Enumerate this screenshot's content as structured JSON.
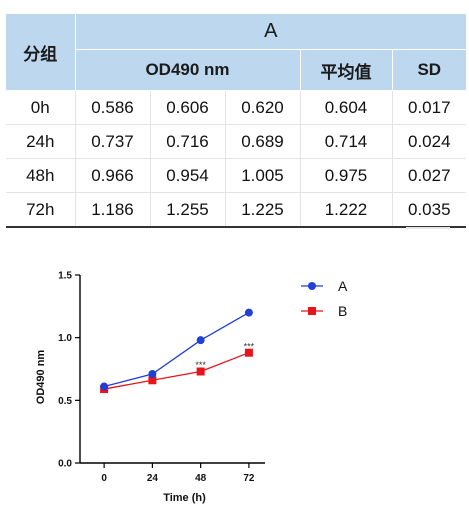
{
  "table": {
    "group_header": "分组",
    "top_header": "A",
    "sub_headers": [
      "OD490 nm",
      "平均值",
      "SD"
    ],
    "rows": [
      {
        "label": "0h",
        "values": [
          "0.586",
          "0.606",
          "0.620"
        ],
        "mean": "0.604",
        "sd": "0.017"
      },
      {
        "label": "24h",
        "values": [
          "0.737",
          "0.716",
          "0.689"
        ],
        "mean": "0.714",
        "sd": "0.024"
      },
      {
        "label": "48h",
        "values": [
          "0.966",
          "0.954",
          "1.005"
        ],
        "mean": "0.975",
        "sd": "0.027"
      },
      {
        "label": "72h",
        "values": [
          "1.186",
          "1.255",
          "1.225"
        ],
        "mean": "1.222",
        "sd": "0.035"
      }
    ]
  },
  "chart_data": {
    "type": "line",
    "xlabel": "Time (h)",
    "ylabel": "OD490 nm",
    "x": [
      0,
      24,
      48,
      72
    ],
    "x_ticks": [
      "0",
      "24",
      "48",
      "72"
    ],
    "y_ticks": [
      "0.0",
      "0.5",
      "1.0",
      "1.5"
    ],
    "xlim": [
      -12,
      80
    ],
    "ylim": [
      0,
      1.5
    ],
    "legend_position": "top-right",
    "series": [
      {
        "name": "A",
        "values": [
          0.61,
          0.71,
          0.98,
          1.2
        ],
        "color": "#1f3fd6",
        "marker": "circle"
      },
      {
        "name": "B",
        "values": [
          0.59,
          0.66,
          0.73,
          0.88
        ],
        "color": "#e8141b",
        "marker": "square"
      }
    ],
    "annotations": [
      {
        "x": 48,
        "y": 0.78,
        "text": "***"
      },
      {
        "x": 72,
        "y": 0.93,
        "text": "***"
      }
    ]
  }
}
